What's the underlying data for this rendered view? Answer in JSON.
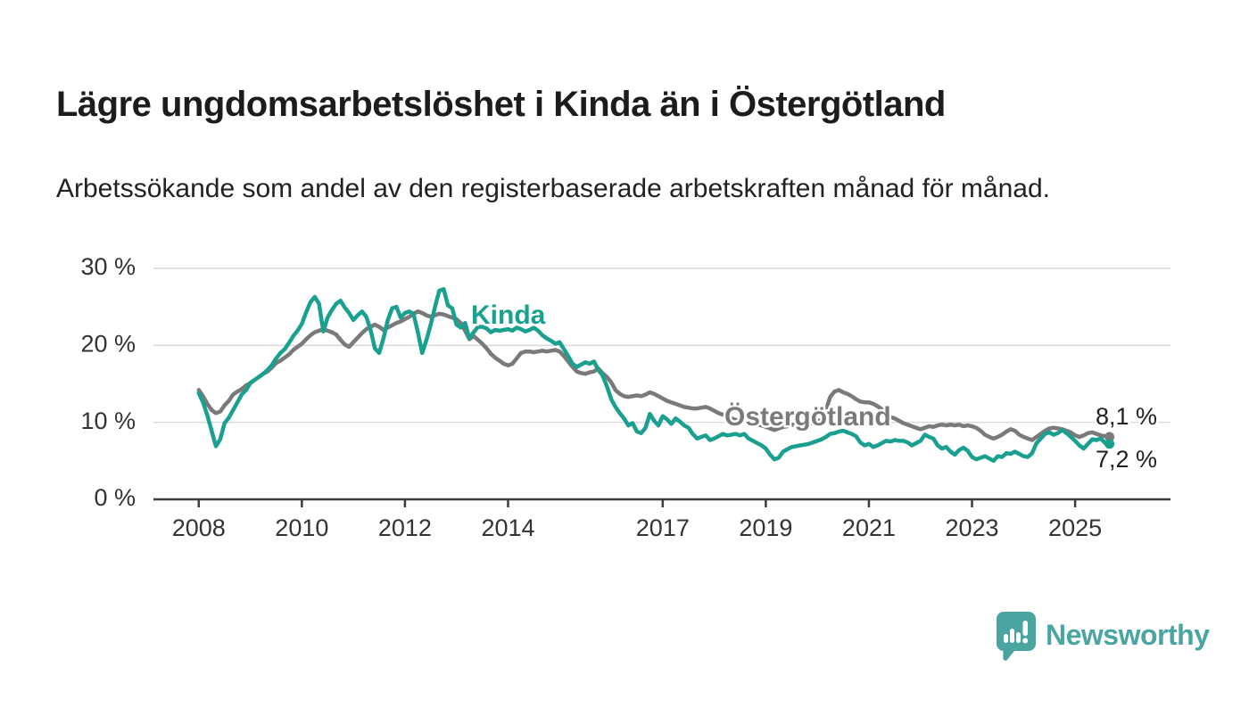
{
  "header": {
    "title": "Lägre ungdomsarbetslöshet i Kinda än i Östergötland",
    "subtitle": "Arbetssökande som andel av den registerbaserade arbetskraften månad för månad."
  },
  "branding": {
    "logo_text": "Newsworthy",
    "logo_color": "#4AA5A1"
  },
  "chart_data": {
    "type": "line",
    "title": "Lägre ungdomsarbetslöshet i Kinda än i Östergötland",
    "unit": "%",
    "grid": "horizontal-only",
    "legend_position": "inline-labels",
    "xlim": [
      2007.0,
      2026.85
    ],
    "ylim": [
      0,
      30.8
    ],
    "x_ticks": [
      2008,
      2010,
      2012,
      2014,
      2017,
      2019,
      2021,
      2023,
      2025
    ],
    "y_ticks": [
      0,
      10,
      20,
      30
    ],
    "y_tick_suffix": " %",
    "x_start": "2008-01",
    "x_freq": "monthly",
    "axis_color": "#3d3d3d",
    "grid_color": "#dcdcdc",
    "series": [
      {
        "name": "Östergötland",
        "color": "#7a7a7a",
        "end_label": "8,1 %",
        "last_value": 8.1,
        "values": [
          14.2,
          13.4,
          12.4,
          11.6,
          11.2,
          11.4,
          12.2,
          12.8,
          13.6,
          14.0,
          14.3,
          14.8,
          15.1,
          15.5,
          15.9,
          16.3,
          16.6,
          17.1,
          17.7,
          18.0,
          18.4,
          18.8,
          19.4,
          19.8,
          20.2,
          20.8,
          21.3,
          21.7,
          21.9,
          22.1,
          21.9,
          21.7,
          21.4,
          20.7,
          20.1,
          19.8,
          20.4,
          21.0,
          21.6,
          22.1,
          22.4,
          22.7,
          22.4,
          22.0,
          22.3,
          22.6,
          22.9,
          23.1,
          23.4,
          23.7,
          24.1,
          24.4,
          24.2,
          23.9,
          23.7,
          23.9,
          24.1,
          24.0,
          23.8,
          23.6,
          23.4,
          22.9,
          21.9,
          20.8,
          21.2,
          20.7,
          20.2,
          19.6,
          18.9,
          18.4,
          18.0,
          17.6,
          17.4,
          17.6,
          18.3,
          19.0,
          19.2,
          19.2,
          19.1,
          19.2,
          19.3,
          19.2,
          19.3,
          19.4,
          19.2,
          18.6,
          17.9,
          17.2,
          16.6,
          16.4,
          16.3,
          16.5,
          16.6,
          17.0,
          16.4,
          15.9,
          15.2,
          14.2,
          13.7,
          13.4,
          13.3,
          13.4,
          13.5,
          13.4,
          13.6,
          13.9,
          13.7,
          13.4,
          13.1,
          12.8,
          12.6,
          12.4,
          12.2,
          12.0,
          11.9,
          11.8,
          11.8,
          11.9,
          12.0,
          11.8,
          11.5,
          11.2,
          11.0,
          10.8,
          10.5,
          10.3,
          10.2,
          10.3,
          10.1,
          9.9,
          9.7,
          9.6,
          9.4,
          9.2,
          9.0,
          9.2,
          9.4,
          9.5,
          9.7,
          9.6,
          9.6,
          9.7,
          9.8,
          9.9,
          10.1,
          10.4,
          11.6,
          13.3,
          14.0,
          14.2,
          13.9,
          13.7,
          13.4,
          13.0,
          12.7,
          12.6,
          12.6,
          12.4,
          12.1,
          11.7,
          11.2,
          10.7,
          10.5,
          10.2,
          9.9,
          9.7,
          9.5,
          9.3,
          9.1,
          9.3,
          9.5,
          9.4,
          9.6,
          9.7,
          9.6,
          9.7,
          9.6,
          9.7,
          9.5,
          9.6,
          9.5,
          9.3,
          8.9,
          8.4,
          8.1,
          7.9,
          8.1,
          8.4,
          8.8,
          9.1,
          8.9,
          8.4,
          8.1,
          7.9,
          7.7,
          8.1,
          8.5,
          8.9,
          9.2,
          9.3,
          9.2,
          9.1,
          8.9,
          8.7,
          8.3,
          8.1,
          8.3,
          8.6,
          8.7,
          8.5,
          8.3,
          8.2,
          8.1
        ]
      },
      {
        "name": "Kinda",
        "color": "#1aa08f",
        "end_label": "7,2 %",
        "last_value": 7.2,
        "values": [
          13.8,
          12.6,
          10.9,
          8.9,
          6.9,
          7.8,
          9.9,
          10.6,
          11.6,
          12.6,
          13.6,
          14.2,
          15.1,
          15.5,
          15.9,
          16.3,
          16.8,
          17.4,
          18.3,
          19.0,
          19.5,
          20.3,
          21.2,
          21.9,
          22.8,
          24.3,
          25.6,
          26.3,
          25.4,
          21.8,
          23.6,
          24.6,
          25.4,
          25.8,
          24.9,
          24.2,
          23.3,
          23.9,
          24.4,
          23.7,
          22.0,
          19.6,
          19.0,
          20.9,
          23.3,
          24.8,
          25.0,
          23.6,
          24.2,
          24.4,
          24.1,
          21.7,
          19.0,
          20.7,
          22.7,
          25.0,
          27.1,
          27.3,
          25.2,
          24.8,
          22.7,
          22.3,
          22.9,
          20.9,
          21.7,
          22.4,
          22.4,
          22.2,
          21.7,
          22.0,
          21.9,
          22.0,
          22.1,
          21.9,
          22.3,
          22.1,
          21.8,
          22.0,
          22.3,
          21.9,
          21.3,
          20.9,
          20.6,
          20.2,
          20.4,
          19.5,
          18.6,
          17.6,
          17.2,
          17.5,
          17.8,
          17.6,
          17.9,
          16.8,
          16.1,
          14.7,
          13.0,
          12.0,
          11.2,
          10.5,
          9.6,
          9.9,
          8.8,
          8.6,
          9.3,
          11.1,
          10.2,
          9.6,
          10.8,
          10.4,
          9.8,
          10.5,
          10.1,
          9.6,
          9.3,
          8.5,
          7.9,
          8.1,
          8.3,
          7.7,
          7.9,
          8.2,
          8.5,
          8.3,
          8.4,
          8.5,
          8.3,
          8.5,
          7.9,
          7.6,
          7.3,
          7.0,
          6.6,
          5.8,
          5.2,
          5.4,
          6.2,
          6.5,
          6.8,
          6.9,
          7.0,
          7.1,
          7.2,
          7.4,
          7.6,
          7.8,
          8.1,
          8.5,
          8.6,
          8.8,
          8.9,
          8.7,
          8.5,
          8.2,
          7.4,
          7.0,
          7.2,
          6.8,
          7.0,
          7.3,
          7.6,
          7.5,
          7.7,
          7.6,
          7.6,
          7.4,
          7.0,
          7.3,
          7.6,
          8.4,
          8.1,
          7.9,
          7.0,
          6.6,
          6.8,
          6.2,
          5.8,
          6.4,
          6.7,
          6.3,
          5.5,
          5.2,
          5.4,
          5.6,
          5.3,
          5.0,
          5.6,
          5.5,
          6.0,
          5.9,
          6.2,
          5.9,
          5.6,
          5.5,
          6.0,
          7.3,
          7.9,
          8.5,
          8.7,
          8.4,
          8.6,
          9.0,
          8.6,
          8.1,
          7.6,
          7.0,
          6.6,
          7.2,
          7.8,
          7.7,
          7.9,
          7.3,
          7.2
        ]
      }
    ]
  }
}
